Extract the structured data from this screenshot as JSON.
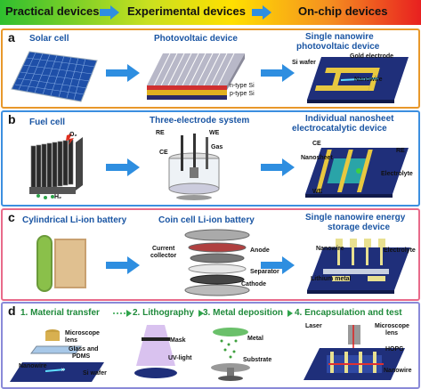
{
  "header": {
    "left": "Practical devices",
    "middle": "Experimental devices",
    "right": "On-chip devices"
  },
  "panels": {
    "a": {
      "letter": "a",
      "col1": "Solar cell",
      "col2": "Photovoltaic device",
      "col3_line1": "Single nanowire",
      "col3_line2": "photovoltaic device",
      "labels": [
        "n-type Si",
        "p-type Si",
        "Si wafer",
        "Gold electrode",
        "Nanowire"
      ]
    },
    "b": {
      "letter": "b",
      "col1": "Fuel cell",
      "col2": "Three-electrode system",
      "col3_line1": "Individual nanosheet",
      "col3_line2": "electrocatalytic device",
      "labels": [
        "O₂",
        "H₂",
        "RE",
        "WE",
        "CE",
        "Gas",
        "CE",
        "RE",
        "Nanosheet",
        "Electrolyte",
        "WE"
      ]
    },
    "c": {
      "letter": "c",
      "col1": "Cylindrical Li-ion battery",
      "col2": "Coin cell Li-ion battery",
      "col3_line1": "Single nanowire energy",
      "col3_line2": "storage device",
      "labels": [
        "Current",
        "collector",
        "Anode",
        "Separator",
        "Cathode",
        "Nanowire",
        "Electrolyte",
        "Lithium metal"
      ]
    },
    "d": {
      "letter": "d",
      "steps": [
        "1. Material transfer",
        "2. Lithography",
        "3. Metal deposition",
        "4. Encapsulation and test"
      ],
      "labels": [
        "Microscope",
        "lens",
        "Glass and",
        "PDMS",
        "Nanowire",
        "Si wafer",
        "Mask",
        "UV-light",
        "Metal",
        "Substrate",
        "Laser",
        "Microscope",
        "lens",
        "HOPG",
        "Nanowire"
      ]
    }
  },
  "colors": {
    "header_gradient": [
      "#2fbf2f",
      "#e6e600",
      "#f07a10",
      "#e82020"
    ],
    "panel_a_border": "#e8982a",
    "panel_b_border": "#3c8fe0",
    "panel_c_border": "#e86a8a",
    "panel_d_border": "#8a8ad8",
    "arrow": "#2e8ee0",
    "title_blue": "#1a55a3",
    "step_green": "#1f8a3b"
  }
}
